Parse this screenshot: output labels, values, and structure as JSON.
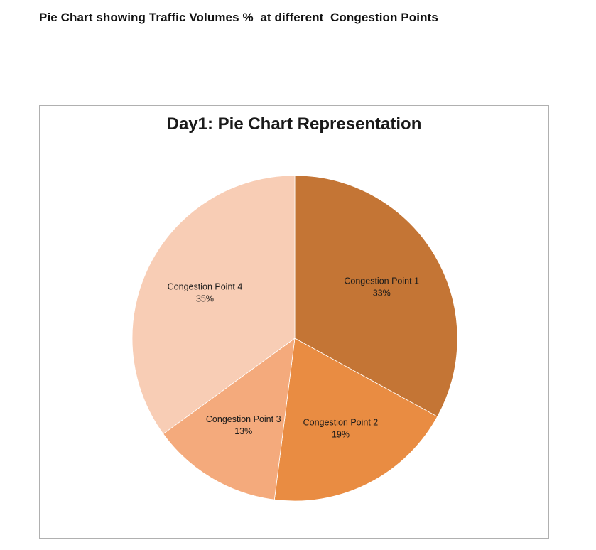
{
  "page": {
    "heading": "Pie Chart showing Traffic Volumes %  at different  Congestion Points"
  },
  "chart_data": {
    "type": "pie",
    "title": "Day1: Pie Chart Representation",
    "start_angle": "12 o'clock",
    "direction": "clockwise",
    "categories": [
      "Congestion Point 1",
      "Congestion Point 2",
      "Congestion Point 3",
      "Congestion Point 4"
    ],
    "values": [
      33,
      19,
      13,
      35
    ],
    "value_labels": [
      "33%",
      "19%",
      "13%",
      "35%"
    ],
    "colors": [
      "#C47535",
      "#E98C42",
      "#F4AA7C",
      "#F8CDB5"
    ],
    "legend": "none",
    "data_labels": "category name and percentage inside slices"
  }
}
